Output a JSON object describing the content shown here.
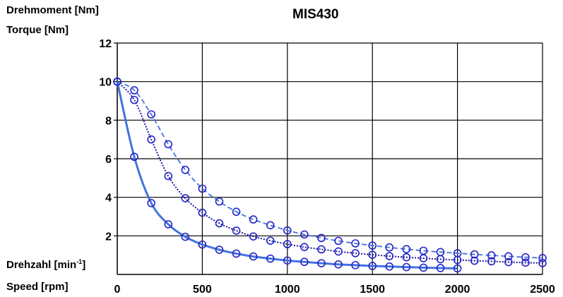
{
  "chart_data": {
    "type": "line",
    "title": "MIS430",
    "ylabel_lines": [
      "Drehmoment [Nm]",
      "Torque [Nm]"
    ],
    "xlabel_de_prefix": "Drehzahl [min",
    "xlabel_de_sup": "-1",
    "xlabel_de_suffix": "]",
    "xlabel_en": "Speed [rpm]",
    "xlim": [
      0,
      2500
    ],
    "ylim": [
      0,
      12
    ],
    "x_ticks": [
      "0",
      "500",
      "1000",
      "1500",
      "2000",
      "2500"
    ],
    "y_ticks": [
      "2",
      "4",
      "6",
      "8",
      "10",
      "12"
    ],
    "grid": true,
    "series": [
      {
        "style": "solid",
        "color": "#4472e0",
        "points": [
          [
            0,
            10.0
          ],
          [
            100,
            6.1
          ],
          [
            200,
            3.7
          ],
          [
            300,
            2.6
          ],
          [
            400,
            1.95
          ],
          [
            500,
            1.55
          ],
          [
            600,
            1.28
          ],
          [
            700,
            1.08
          ],
          [
            800,
            0.93
          ],
          [
            900,
            0.82
          ],
          [
            1000,
            0.72
          ],
          [
            1100,
            0.65
          ],
          [
            1200,
            0.58
          ],
          [
            1300,
            0.52
          ],
          [
            1400,
            0.48
          ],
          [
            1500,
            0.44
          ],
          [
            1600,
            0.41
          ],
          [
            1700,
            0.38
          ],
          [
            1800,
            0.35
          ],
          [
            1900,
            0.33
          ],
          [
            2000,
            0.31
          ]
        ]
      },
      {
        "style": "dotted",
        "color": "#1a1aa0",
        "points": [
          [
            0,
            10.0
          ],
          [
            100,
            9.05
          ],
          [
            200,
            7.0
          ],
          [
            300,
            5.1
          ],
          [
            400,
            3.95
          ],
          [
            500,
            3.2
          ],
          [
            600,
            2.65
          ],
          [
            700,
            2.27
          ],
          [
            800,
            1.97
          ],
          [
            900,
            1.75
          ],
          [
            1000,
            1.57
          ],
          [
            1100,
            1.42
          ],
          [
            1200,
            1.3
          ],
          [
            1300,
            1.19
          ],
          [
            1400,
            1.1
          ],
          [
            1500,
            1.02
          ],
          [
            1600,
            0.95
          ],
          [
            1700,
            0.89
          ],
          [
            1800,
            0.84
          ],
          [
            1900,
            0.79
          ],
          [
            2000,
            0.75
          ],
          [
            2100,
            0.71
          ],
          [
            2200,
            0.68
          ],
          [
            2300,
            0.64
          ],
          [
            2400,
            0.61
          ],
          [
            2500,
            0.59
          ]
        ]
      },
      {
        "style": "dashed",
        "color": "#4472e0",
        "points": [
          [
            0,
            10.0
          ],
          [
            100,
            9.55
          ],
          [
            200,
            8.3
          ],
          [
            300,
            6.75
          ],
          [
            400,
            5.42
          ],
          [
            500,
            4.45
          ],
          [
            600,
            3.78
          ],
          [
            700,
            3.25
          ],
          [
            800,
            2.85
          ],
          [
            900,
            2.55
          ],
          [
            1000,
            2.28
          ],
          [
            1100,
            2.07
          ],
          [
            1200,
            1.89
          ],
          [
            1300,
            1.74
          ],
          [
            1400,
            1.61
          ],
          [
            1500,
            1.5
          ],
          [
            1600,
            1.4
          ],
          [
            1700,
            1.31
          ],
          [
            1800,
            1.23
          ],
          [
            1900,
            1.16
          ],
          [
            2000,
            1.1
          ],
          [
            2100,
            1.04
          ],
          [
            2200,
            0.99
          ],
          [
            2300,
            0.94
          ],
          [
            2400,
            0.89
          ],
          [
            2500,
            0.85
          ]
        ]
      }
    ]
  }
}
